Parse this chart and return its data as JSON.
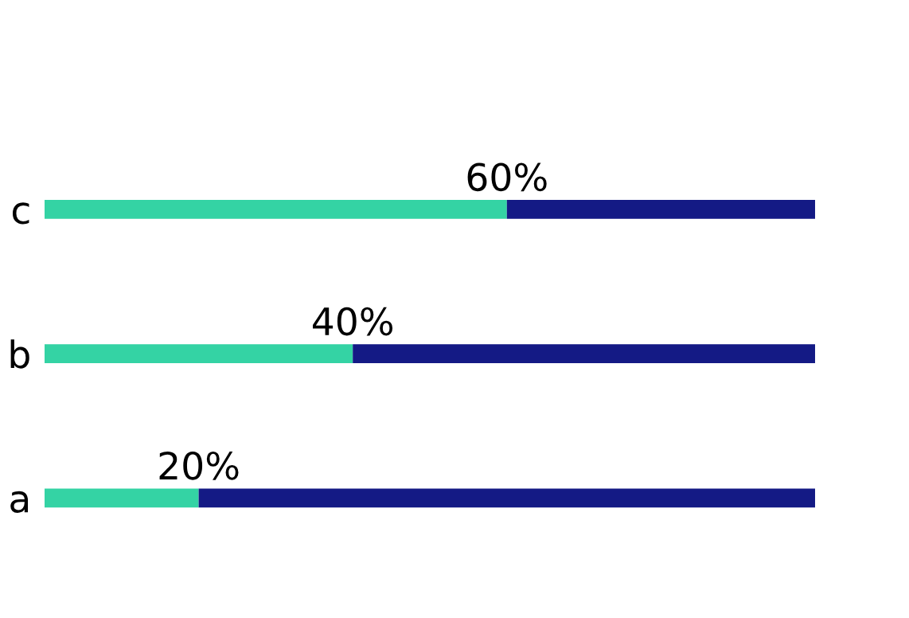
{
  "chart_data": {
    "type": "bar",
    "orientation": "horizontal",
    "stacked": true,
    "categories": [
      "c",
      "b",
      "a"
    ],
    "series": [
      {
        "color": "#34d3a4",
        "values": [
          60,
          40,
          20
        ],
        "value_labels": [
          "60%",
          "40%",
          "20%"
        ]
      },
      {
        "color": "#141a85",
        "values": [
          40,
          60,
          80
        ]
      }
    ],
    "grid": false,
    "legend": false
  }
}
